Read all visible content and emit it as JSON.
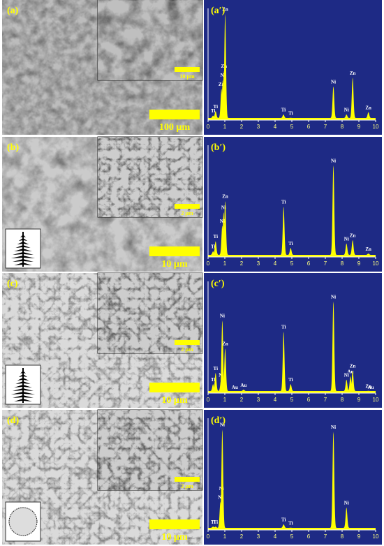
{
  "chart_data": [
    {
      "type": "spectrum",
      "label": "(a′)",
      "color": "#ffff00",
      "xlim": [
        0,
        10
      ],
      "xticks": [
        0,
        1,
        2,
        3,
        4,
        5,
        6,
        7,
        8,
        9,
        10
      ],
      "ylim": [
        0,
        100
      ],
      "peaks": [
        {
          "x": 0.3,
          "height": 4,
          "label": "Ti"
        },
        {
          "x": 0.45,
          "height": 8,
          "label": "Ti"
        },
        {
          "x": 0.8,
          "height": 28,
          "label": "Zn"
        },
        {
          "x": 0.88,
          "height": 36,
          "label": "Ni"
        },
        {
          "x": 0.95,
          "height": 44,
          "label": "Zn"
        },
        {
          "x": 1.02,
          "height": 95,
          "label": "Zn"
        },
        {
          "x": 4.5,
          "height": 5,
          "label": "Ti"
        },
        {
          "x": 4.93,
          "height": 2,
          "label": "Ti"
        },
        {
          "x": 7.48,
          "height": 30,
          "label": "Ni"
        },
        {
          "x": 8.26,
          "height": 5,
          "label": "Ni"
        },
        {
          "x": 8.63,
          "height": 38,
          "label": "Zn"
        },
        {
          "x": 9.57,
          "height": 7,
          "label": "Zn"
        }
      ]
    },
    {
      "type": "spectrum",
      "label": "(b′)",
      "color": "#ffff00",
      "xlim": [
        0,
        10
      ],
      "xticks": [
        0,
        1,
        2,
        3,
        4,
        5,
        6,
        7,
        8,
        9,
        10
      ],
      "ylim": [
        0,
        100
      ],
      "peaks": [
        {
          "x": 0.3,
          "height": 5,
          "label": "Ti"
        },
        {
          "x": 0.45,
          "height": 14,
          "label": "Ti"
        },
        {
          "x": 0.85,
          "height": 28,
          "label": "Ni"
        },
        {
          "x": 0.93,
          "height": 40,
          "label": "Ni"
        },
        {
          "x": 1.02,
          "height": 50,
          "label": "Zn"
        },
        {
          "x": 4.51,
          "height": 45,
          "label": "Ti"
        },
        {
          "x": 4.93,
          "height": 8,
          "label": "Ti"
        },
        {
          "x": 7.48,
          "height": 82,
          "label": "Ni"
        },
        {
          "x": 8.26,
          "height": 12,
          "label": "Ni"
        },
        {
          "x": 8.63,
          "height": 15,
          "label": "Zn"
        },
        {
          "x": 9.57,
          "height": 3,
          "label": "Zn"
        }
      ]
    },
    {
      "type": "spectrum",
      "label": "(c′)",
      "color": "#ffff00",
      "xlim": [
        0,
        10
      ],
      "xticks": [
        0,
        1,
        2,
        3,
        4,
        5,
        6,
        7,
        8,
        9,
        10
      ],
      "ylim": [
        0,
        100
      ],
      "peaks": [
        {
          "x": 0.3,
          "height": 8,
          "label": "Ti"
        },
        {
          "x": 0.45,
          "height": 18,
          "label": "Ti"
        },
        {
          "x": 0.78,
          "height": 12,
          "label": "Ni"
        },
        {
          "x": 0.85,
          "height": 65,
          "label": "Ni"
        },
        {
          "x": 1.02,
          "height": 40,
          "label": "Zn"
        },
        {
          "x": 1.6,
          "height": 1,
          "label": "Au"
        },
        {
          "x": 2.12,
          "height": 3,
          "label": "Au"
        },
        {
          "x": 4.51,
          "height": 55,
          "label": "Ti"
        },
        {
          "x": 4.93,
          "height": 8,
          "label": "Ti"
        },
        {
          "x": 7.48,
          "height": 82,
          "label": "Ni"
        },
        {
          "x": 8.26,
          "height": 12,
          "label": "Ni"
        },
        {
          "x": 8.5,
          "height": 15,
          "label": "Au"
        },
        {
          "x": 8.63,
          "height": 20,
          "label": "Zn"
        },
        {
          "x": 9.57,
          "height": 2,
          "label": "Zn"
        },
        {
          "x": 9.71,
          "height": 1,
          "label": "Au"
        }
      ]
    },
    {
      "type": "spectrum",
      "label": "(d′)",
      "color": "#ffff00",
      "xlim": [
        0,
        10
      ],
      "xticks": [
        0,
        1,
        2,
        3,
        4,
        5,
        6,
        7,
        8,
        9,
        10
      ],
      "ylim": [
        0,
        100
      ],
      "peaks": [
        {
          "x": 0.3,
          "height": 3,
          "label": "Ti"
        },
        {
          "x": 0.45,
          "height": 3,
          "label": "Ti"
        },
        {
          "x": 0.74,
          "height": 25,
          "label": "Ni"
        },
        {
          "x": 0.8,
          "height": 33,
          "label": "Ni"
        },
        {
          "x": 0.85,
          "height": 90,
          "label": "Ni"
        },
        {
          "x": 4.51,
          "height": 5,
          "label": "Ti"
        },
        {
          "x": 4.93,
          "height": 2,
          "label": "Ti"
        },
        {
          "x": 7.48,
          "height": 88,
          "label": "Ni"
        },
        {
          "x": 8.26,
          "height": 20,
          "label": "Ni"
        }
      ]
    }
  ],
  "images": [
    {
      "label": "(a)",
      "inset_scale": "10 µm",
      "scale": "100 µm"
    },
    {
      "label": "(b)",
      "inset_scale": "2 µm",
      "scale": "10 µm"
    },
    {
      "label": "(c)",
      "inset_scale": "2 µm",
      "scale": "10 µm"
    },
    {
      "label": "(d)",
      "inset_scale": "2 µm",
      "scale": "10 µm"
    }
  ]
}
